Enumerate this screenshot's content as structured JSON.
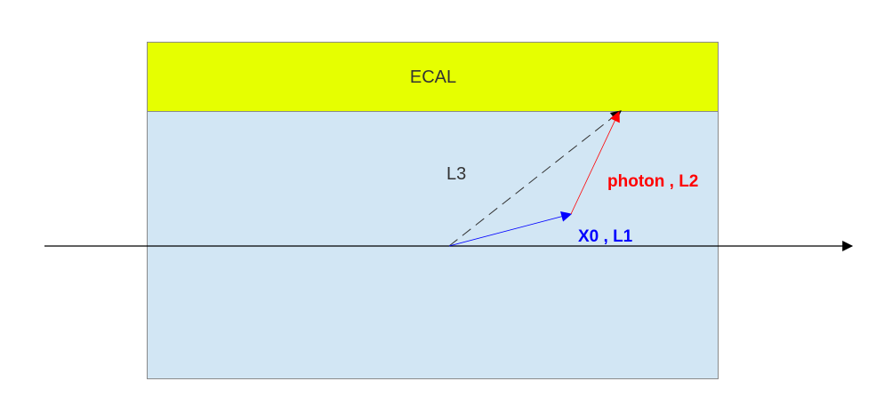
{
  "labels": {
    "ecal": "ECAL",
    "l3": "L3",
    "photon_l2": "photon , L2",
    "x0_l1": "X0 , L1"
  },
  "colors": {
    "ecal_fill": "#e6ff00",
    "detector_fill": "#d2e6f4",
    "border": "#8a8a8a",
    "axis": "#000000",
    "l1_arrow": "#0000ff",
    "l2_arrow": "#ff0000",
    "l3_arrow": "#333333",
    "photon_text": "#ff0000",
    "x0_text": "#0000ff"
  }
}
